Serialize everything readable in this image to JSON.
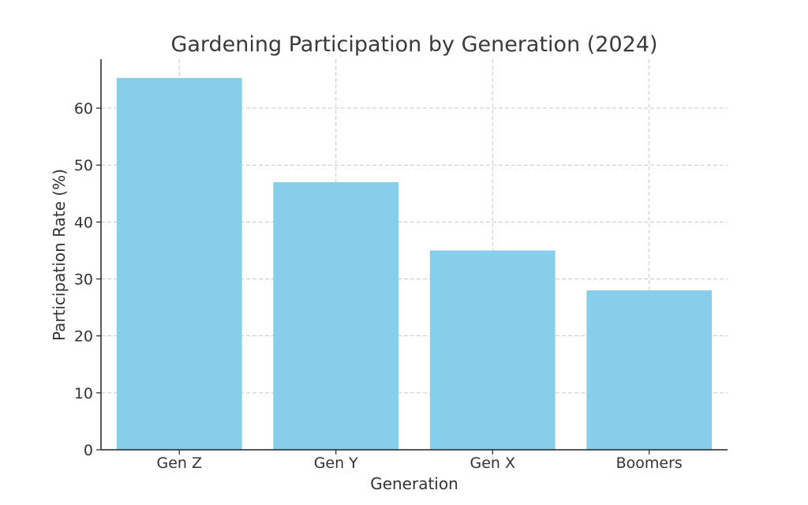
{
  "chart_data": {
    "type": "bar",
    "title": "Gardening Participation by Generation (2024)",
    "xlabel": "Generation",
    "ylabel": "Participation Rate (%)",
    "categories": [
      "Gen Z",
      "Gen Y",
      "Gen X",
      "Boomers"
    ],
    "values": [
      65.3,
      47,
      35,
      28
    ],
    "ylim": [
      0,
      68.6
    ],
    "yticks": [
      0,
      10,
      20,
      30,
      40,
      50,
      60
    ],
    "grid": true,
    "legend": "none",
    "colors": {
      "bar": "#87ceeb",
      "grid": "#c8c8c8",
      "axis": "#222222",
      "text": "#333333"
    }
  }
}
